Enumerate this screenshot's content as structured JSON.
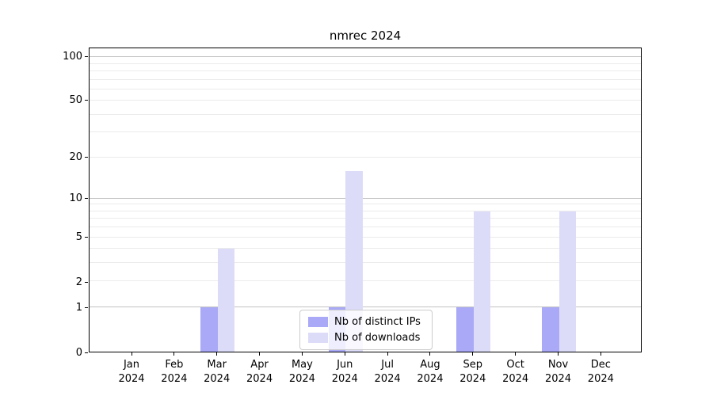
{
  "chart_data": {
    "type": "bar",
    "title": "nmrec 2024",
    "x_year": "2024",
    "categories": [
      "Jan",
      "Feb",
      "Mar",
      "Apr",
      "May",
      "Jun",
      "Jul",
      "Aug",
      "Sep",
      "Oct",
      "Nov",
      "Dec"
    ],
    "series": [
      {
        "name": "Nb of distinct IPs",
        "color": "#a9a9f7",
        "values": [
          0,
          0,
          1,
          0,
          0,
          1,
          0,
          0,
          1,
          0,
          1,
          0
        ]
      },
      {
        "name": "Nb of downloads",
        "color": "#dcdcf9",
        "values": [
          0,
          0,
          4,
          0,
          0,
          16,
          0,
          0,
          8,
          0,
          8,
          0
        ]
      }
    ],
    "y_axis": {
      "scale": "log1p",
      "ticks": [
        0,
        1,
        2,
        5,
        10,
        20,
        50,
        100
      ],
      "major_gridlines": [
        1,
        10,
        100
      ],
      "minor_gridlines": [
        2,
        3,
        4,
        5,
        6,
        7,
        8,
        9,
        20,
        30,
        40,
        50,
        60,
        70,
        80,
        90
      ],
      "range": [
        0,
        115
      ]
    },
    "legend": {
      "position": "lower center"
    }
  },
  "colors": {
    "axis": "#000000",
    "major_grid": "#c3c3c3",
    "minor_grid": "#ebebeb",
    "bar_ips": "#a9a9f7",
    "bar_downloads": "#dcdcf9",
    "background": "#ffffff"
  }
}
